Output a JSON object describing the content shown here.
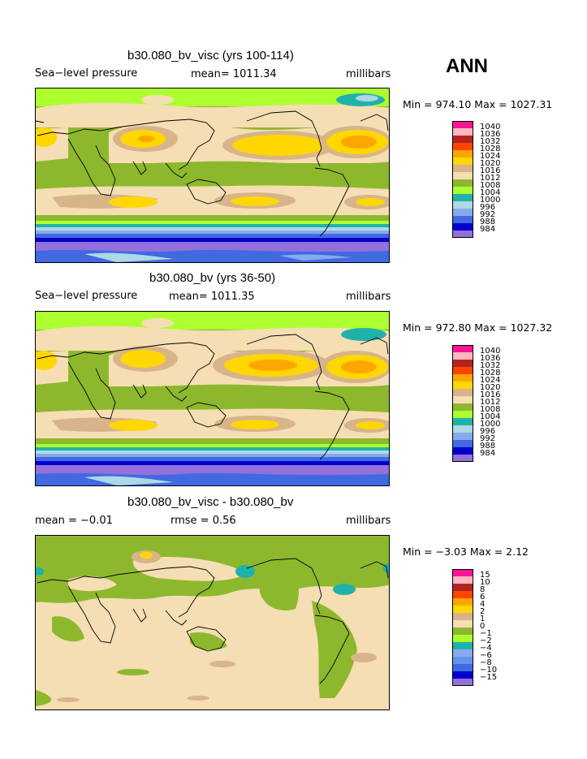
{
  "season": "ANN",
  "colors": {
    "c984": "#9370DB",
    "c988": "#0000CD",
    "c992": "#4169E1",
    "c996": "#87A9EE",
    "c1000": "#ADD8E6",
    "c1004": "#20B2AA",
    "c1008": "#ADFF2F",
    "c1012": "#8DB82E",
    "c1016": "#F5DEB3",
    "c1020": "#D8B48B",
    "c1024": "#FFD700",
    "c1028": "#FFA500",
    "c1032": "#FF4500",
    "c1036": "#B22222",
    "c1040": "#FFB6C1",
    "ctop": "#FF1493"
  },
  "panels": [
    {
      "title": "b30.080_bv_visc (yrs 100-114)",
      "left": "Sea−level pressure",
      "mid": "mean= 1011.34",
      "right": "millibars",
      "minmax": "Min = 974.10 Max = 1027.31",
      "legend": [
        "1040",
        "1036",
        "1032",
        "1028",
        "1024",
        "1020",
        "1016",
        "1012",
        "1008",
        "1004",
        "1000",
        "996",
        "992",
        "988",
        "984"
      ],
      "legend_colors": [
        "#FF1493",
        "#FFB6C1",
        "#B22222",
        "#FF4500",
        "#FFA500",
        "#FFD700",
        "#D8B48B",
        "#F5DEB3",
        "#8DB82E",
        "#ADFF2F",
        "#20B2AA",
        "#ADD8E6",
        "#87A9EE",
        "#4169E1",
        "#0000CD",
        "#9370DB"
      ]
    },
    {
      "title": "b30.080_bv (yrs 36-50)",
      "left": "Sea−level pressure",
      "mid": "mean= 1011.35",
      "right": "millibars",
      "minmax": "Min = 972.80 Max = 1027.32",
      "legend": [
        "1040",
        "1036",
        "1032",
        "1028",
        "1024",
        "1020",
        "1016",
        "1012",
        "1008",
        "1004",
        "1000",
        "996",
        "992",
        "988",
        "984"
      ],
      "legend_colors": [
        "#FF1493",
        "#FFB6C1",
        "#B22222",
        "#FF4500",
        "#FFA500",
        "#FFD700",
        "#D8B48B",
        "#F5DEB3",
        "#8DB82E",
        "#ADFF2F",
        "#20B2AA",
        "#ADD8E6",
        "#87A9EE",
        "#4169E1",
        "#0000CD",
        "#9370DB"
      ]
    },
    {
      "title": "b30.080_bv_visc - b30.080_bv",
      "left": "mean =   −0.01",
      "mid": "rmse =    0.56",
      "right": "millibars",
      "minmax": "Min =   −3.03 Max =    2.12",
      "legend": [
        "15",
        "10",
        "8",
        "6",
        "4",
        "2",
        "1",
        "0",
        "−1",
        "−2",
        "−4",
        "−6",
        "−8",
        "−10",
        "−15"
      ],
      "legend_colors": [
        "#FF1493",
        "#FFB6C1",
        "#B22222",
        "#FF4500",
        "#FFA500",
        "#FFD700",
        "#D8B48B",
        "#F5DEB3",
        "#8DB82E",
        "#ADFF2F",
        "#20B2AA",
        "#87A9EE",
        "#6495ED",
        "#4169E1",
        "#0000CD",
        "#9370DB"
      ]
    }
  ]
}
